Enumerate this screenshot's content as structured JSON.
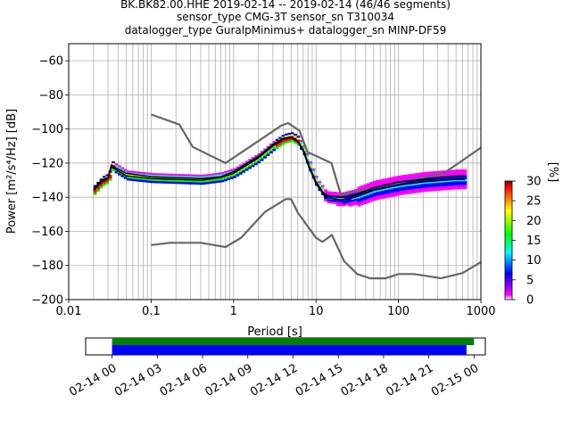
{
  "header": {
    "line1": "BK.BK82.00.HHE   2019-02-14 -- 2019-02-14  (46/46 segments)",
    "line2": "sensor_type CMG-3T sensor_sn T310034",
    "line3": "datalogger_type GuralpMinimus+ datalogger_sn MINP-DF59"
  },
  "chart_data": [
    {
      "type": "heatmap",
      "xscale": "log",
      "xlim": [
        0.01,
        1000
      ],
      "ylim": [
        -200,
        -50
      ],
      "xlabel": "Period [s]",
      "ylabel": "Power [m²/s⁴/Hz] [dB]",
      "x_ticks": [
        {
          "v": 0.01,
          "label": "0.01"
        },
        {
          "v": 0.1,
          "label": "0.1"
        },
        {
          "v": 1,
          "label": "1"
        },
        {
          "v": 10,
          "label": "10"
        },
        {
          "v": 100,
          "label": "100"
        },
        {
          "v": 1000,
          "label": "1000"
        }
      ],
      "y_ticks": [
        {
          "v": -60,
          "label": "−60"
        },
        {
          "v": -80,
          "label": "−80"
        },
        {
          "v": -100,
          "label": "−100"
        },
        {
          "v": -120,
          "label": "−120"
        },
        {
          "v": -140,
          "label": "−140"
        },
        {
          "v": -160,
          "label": "−160"
        },
        {
          "v": -180,
          "label": "−180"
        },
        {
          "v": -200,
          "label": "−200"
        }
      ],
      "grid": true,
      "colorbar": {
        "label": "[%]",
        "range": [
          0,
          30
        ],
        "ticks": [
          {
            "v": 0,
            "label": "0"
          },
          {
            "v": 5,
            "label": "5"
          },
          {
            "v": 10,
            "label": "10"
          },
          {
            "v": 15,
            "label": "15"
          },
          {
            "v": 20,
            "label": "20"
          },
          {
            "v": 25,
            "label": "25"
          },
          {
            "v": 30,
            "label": "30"
          }
        ],
        "colors": [
          "#ffffff",
          "#ff00ff",
          "#0000ff",
          "#00ffff",
          "#00ff00",
          "#ffff00",
          "#ff0000",
          "#800000"
        ]
      },
      "series": [
        {
          "role": "new-high-noise-model",
          "color": "#666666",
          "points": [
            [
              0.1,
              -91.5
            ],
            [
              0.22,
              -97.4
            ],
            [
              0.32,
              -110.5
            ],
            [
              0.8,
              -120
            ],
            [
              3.8,
              -98
            ],
            [
              4.6,
              -96.5
            ],
            [
              6.3,
              -101
            ],
            [
              7.9,
              -113.5
            ],
            [
              15.4,
              -120
            ],
            [
              20,
              -138.5
            ],
            [
              354,
              -126
            ],
            [
              1000,
              -111
            ]
          ]
        },
        {
          "role": "new-low-noise-model",
          "color": "#666666",
          "points": [
            [
              0.1,
              -168
            ],
            [
              0.17,
              -166.7
            ],
            [
              0.4,
              -166.7
            ],
            [
              0.8,
              -169.2
            ],
            [
              1.24,
              -163.7
            ],
            [
              2.4,
              -148.6
            ],
            [
              4.3,
              -141.1
            ],
            [
              5,
              -141.1
            ],
            [
              6,
              -149
            ],
            [
              10,
              -163.8
            ],
            [
              12,
              -166.2
            ],
            [
              15.6,
              -162.1
            ],
            [
              21.9,
              -177.5
            ],
            [
              31.6,
              -185
            ],
            [
              45,
              -187.5
            ],
            [
              70,
              -187.5
            ],
            [
              101,
              -185
            ],
            [
              154,
              -185
            ],
            [
              328,
              -187.5
            ],
            [
              600,
              -184.4
            ],
            [
              1000,
              -178
            ]
          ]
        },
        {
          "role": "mean",
          "color": "#000000",
          "points": [
            [
              0.02,
              -136
            ],
            [
              0.025,
              -131
            ],
            [
              0.03,
              -129
            ],
            [
              0.033,
              -122
            ],
            [
              0.038,
              -124
            ],
            [
              0.05,
              -127.5
            ],
            [
              0.1,
              -129
            ],
            [
              0.2,
              -129.5
            ],
            [
              0.4,
              -130
            ],
            [
              0.7,
              -128.5
            ],
            [
              1,
              -126
            ],
            [
              2,
              -117
            ],
            [
              3,
              -110
            ],
            [
              4,
              -106
            ],
            [
              5,
              -105
            ],
            [
              6,
              -107.5
            ],
            [
              7,
              -113
            ],
            [
              8,
              -121
            ],
            [
              10,
              -132
            ],
            [
              13,
              -140
            ],
            [
              20,
              -141.5
            ],
            [
              30,
              -140
            ],
            [
              50,
              -136
            ],
            [
              100,
              -133
            ],
            [
              200,
              -131
            ],
            [
              500,
              -129.5
            ],
            [
              640,
              -129.5
            ]
          ]
        },
        {
          "role": "mode",
          "color": "#000000",
          "points": [
            [
              0.02,
              -135
            ],
            [
              0.025,
              -130
            ],
            [
              0.03,
              -128.5
            ],
            [
              0.033,
              -121
            ],
            [
              0.038,
              -123
            ],
            [
              0.05,
              -126
            ],
            [
              0.1,
              -128
            ],
            [
              0.2,
              -128.5
            ],
            [
              0.4,
              -129
            ],
            [
              0.7,
              -128
            ],
            [
              1,
              -125
            ],
            [
              2,
              -116
            ],
            [
              3,
              -109
            ],
            [
              4,
              -105.5
            ],
            [
              5,
              -104.5
            ],
            [
              6,
              -107
            ],
            [
              7,
              -112
            ],
            [
              8,
              -120
            ],
            [
              10,
              -131
            ],
            [
              13,
              -139
            ],
            [
              20,
              -140
            ],
            [
              30,
              -138.5
            ],
            [
              50,
              -134.5
            ],
            [
              100,
              -131
            ],
            [
              200,
              -129.5
            ],
            [
              500,
              -127.5
            ],
            [
              640,
              -127.5
            ]
          ]
        }
      ]
    },
    {
      "type": "timeline",
      "xlim": [
        "2019-02-13T22:15",
        "2019-02-15T00:45"
      ],
      "x_ticks": [
        {
          "v": "2019-02-14T00:00",
          "label": "02-14 00"
        },
        {
          "v": "2019-02-14T03:00",
          "label": "02-14 03"
        },
        {
          "v": "2019-02-14T06:00",
          "label": "02-14 06"
        },
        {
          "v": "2019-02-14T09:00",
          "label": "02-14 09"
        },
        {
          "v": "2019-02-14T12:00",
          "label": "02-14 12"
        },
        {
          "v": "2019-02-14T15:00",
          "label": "02-14 15"
        },
        {
          "v": "2019-02-14T18:00",
          "label": "02-14 18"
        },
        {
          "v": "2019-02-14T21:00",
          "label": "02-14 21"
        },
        {
          "v": "2019-02-15T00:00",
          "label": "02-15 00"
        }
      ],
      "bars": [
        {
          "role": "data-coverage",
          "color": "#008000",
          "start": "2019-02-14T00:00",
          "end": "2019-02-15T00:00"
        },
        {
          "role": "psd-coverage",
          "color": "#0000ff",
          "start": "2019-02-14T00:00",
          "end": "2019-02-14T23:30"
        }
      ]
    }
  ]
}
